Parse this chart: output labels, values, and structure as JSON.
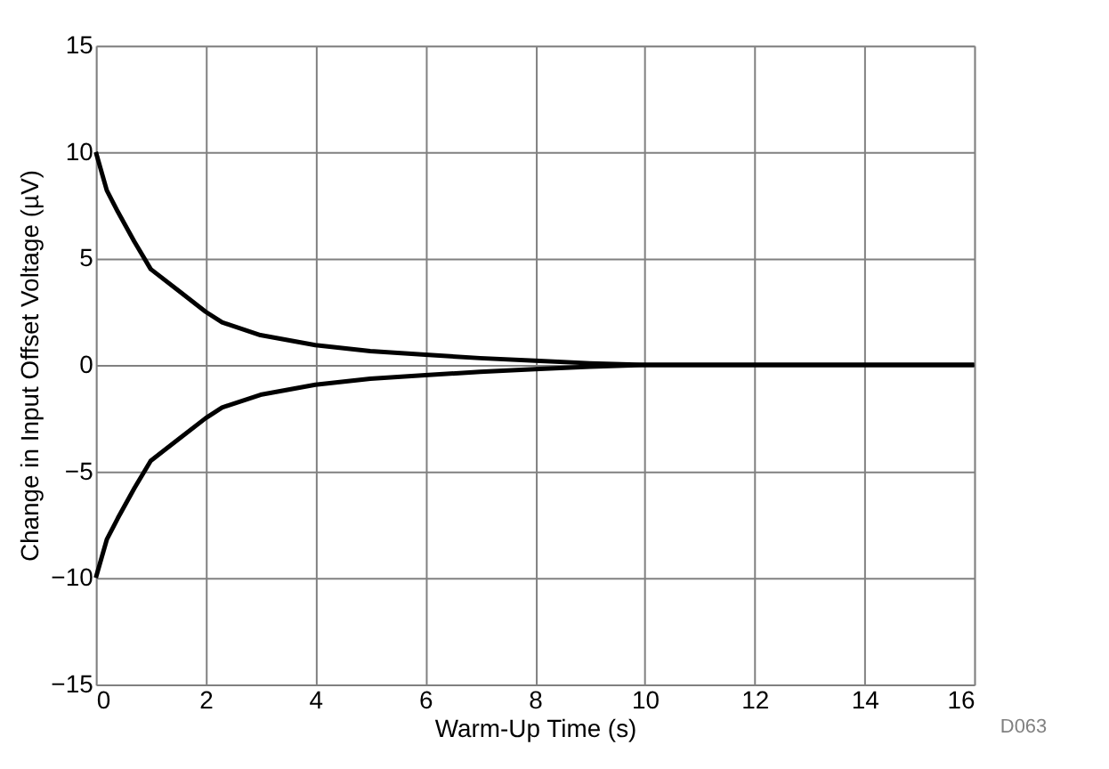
{
  "chart_data": {
    "type": "line",
    "xlabel": "Warm-Up Time (s)",
    "ylabel": "Change in Input Offset Voltage (µV)",
    "xlim": [
      0,
      16
    ],
    "xticks": [
      0,
      2,
      4,
      6,
      8,
      10,
      12,
      14,
      16
    ],
    "ylim": [
      -15,
      15
    ],
    "yticks": [
      -15,
      -10,
      -5,
      0,
      5,
      10,
      15
    ],
    "grid": true,
    "annotations": [
      "D063"
    ],
    "series": [
      {
        "color": "#000000",
        "x": [
          0,
          0.2,
          0.4,
          0.7,
          1,
          1.5,
          2,
          2.3,
          3,
          4,
          5,
          6,
          7,
          8,
          9,
          10,
          12,
          14,
          16
        ],
        "values": [
          10,
          8.2,
          7.2,
          5.8,
          4.5,
          3.5,
          2.5,
          2.0,
          1.4,
          0.93,
          0.65,
          0.48,
          0.32,
          0.2,
          0.08,
          0,
          0,
          0,
          0
        ]
      },
      {
        "color": "#000000",
        "x": [
          0,
          0.2,
          0.4,
          0.7,
          1,
          1.5,
          2,
          2.3,
          3,
          4,
          5,
          6,
          7,
          8,
          9,
          10,
          12,
          14,
          16
        ],
        "values": [
          -10,
          -8.2,
          -7.2,
          -5.8,
          -4.5,
          -3.5,
          -2.5,
          -2.0,
          -1.4,
          -0.93,
          -0.65,
          -0.48,
          -0.32,
          -0.2,
          -0.08,
          0,
          0,
          0,
          0
        ]
      }
    ]
  }
}
